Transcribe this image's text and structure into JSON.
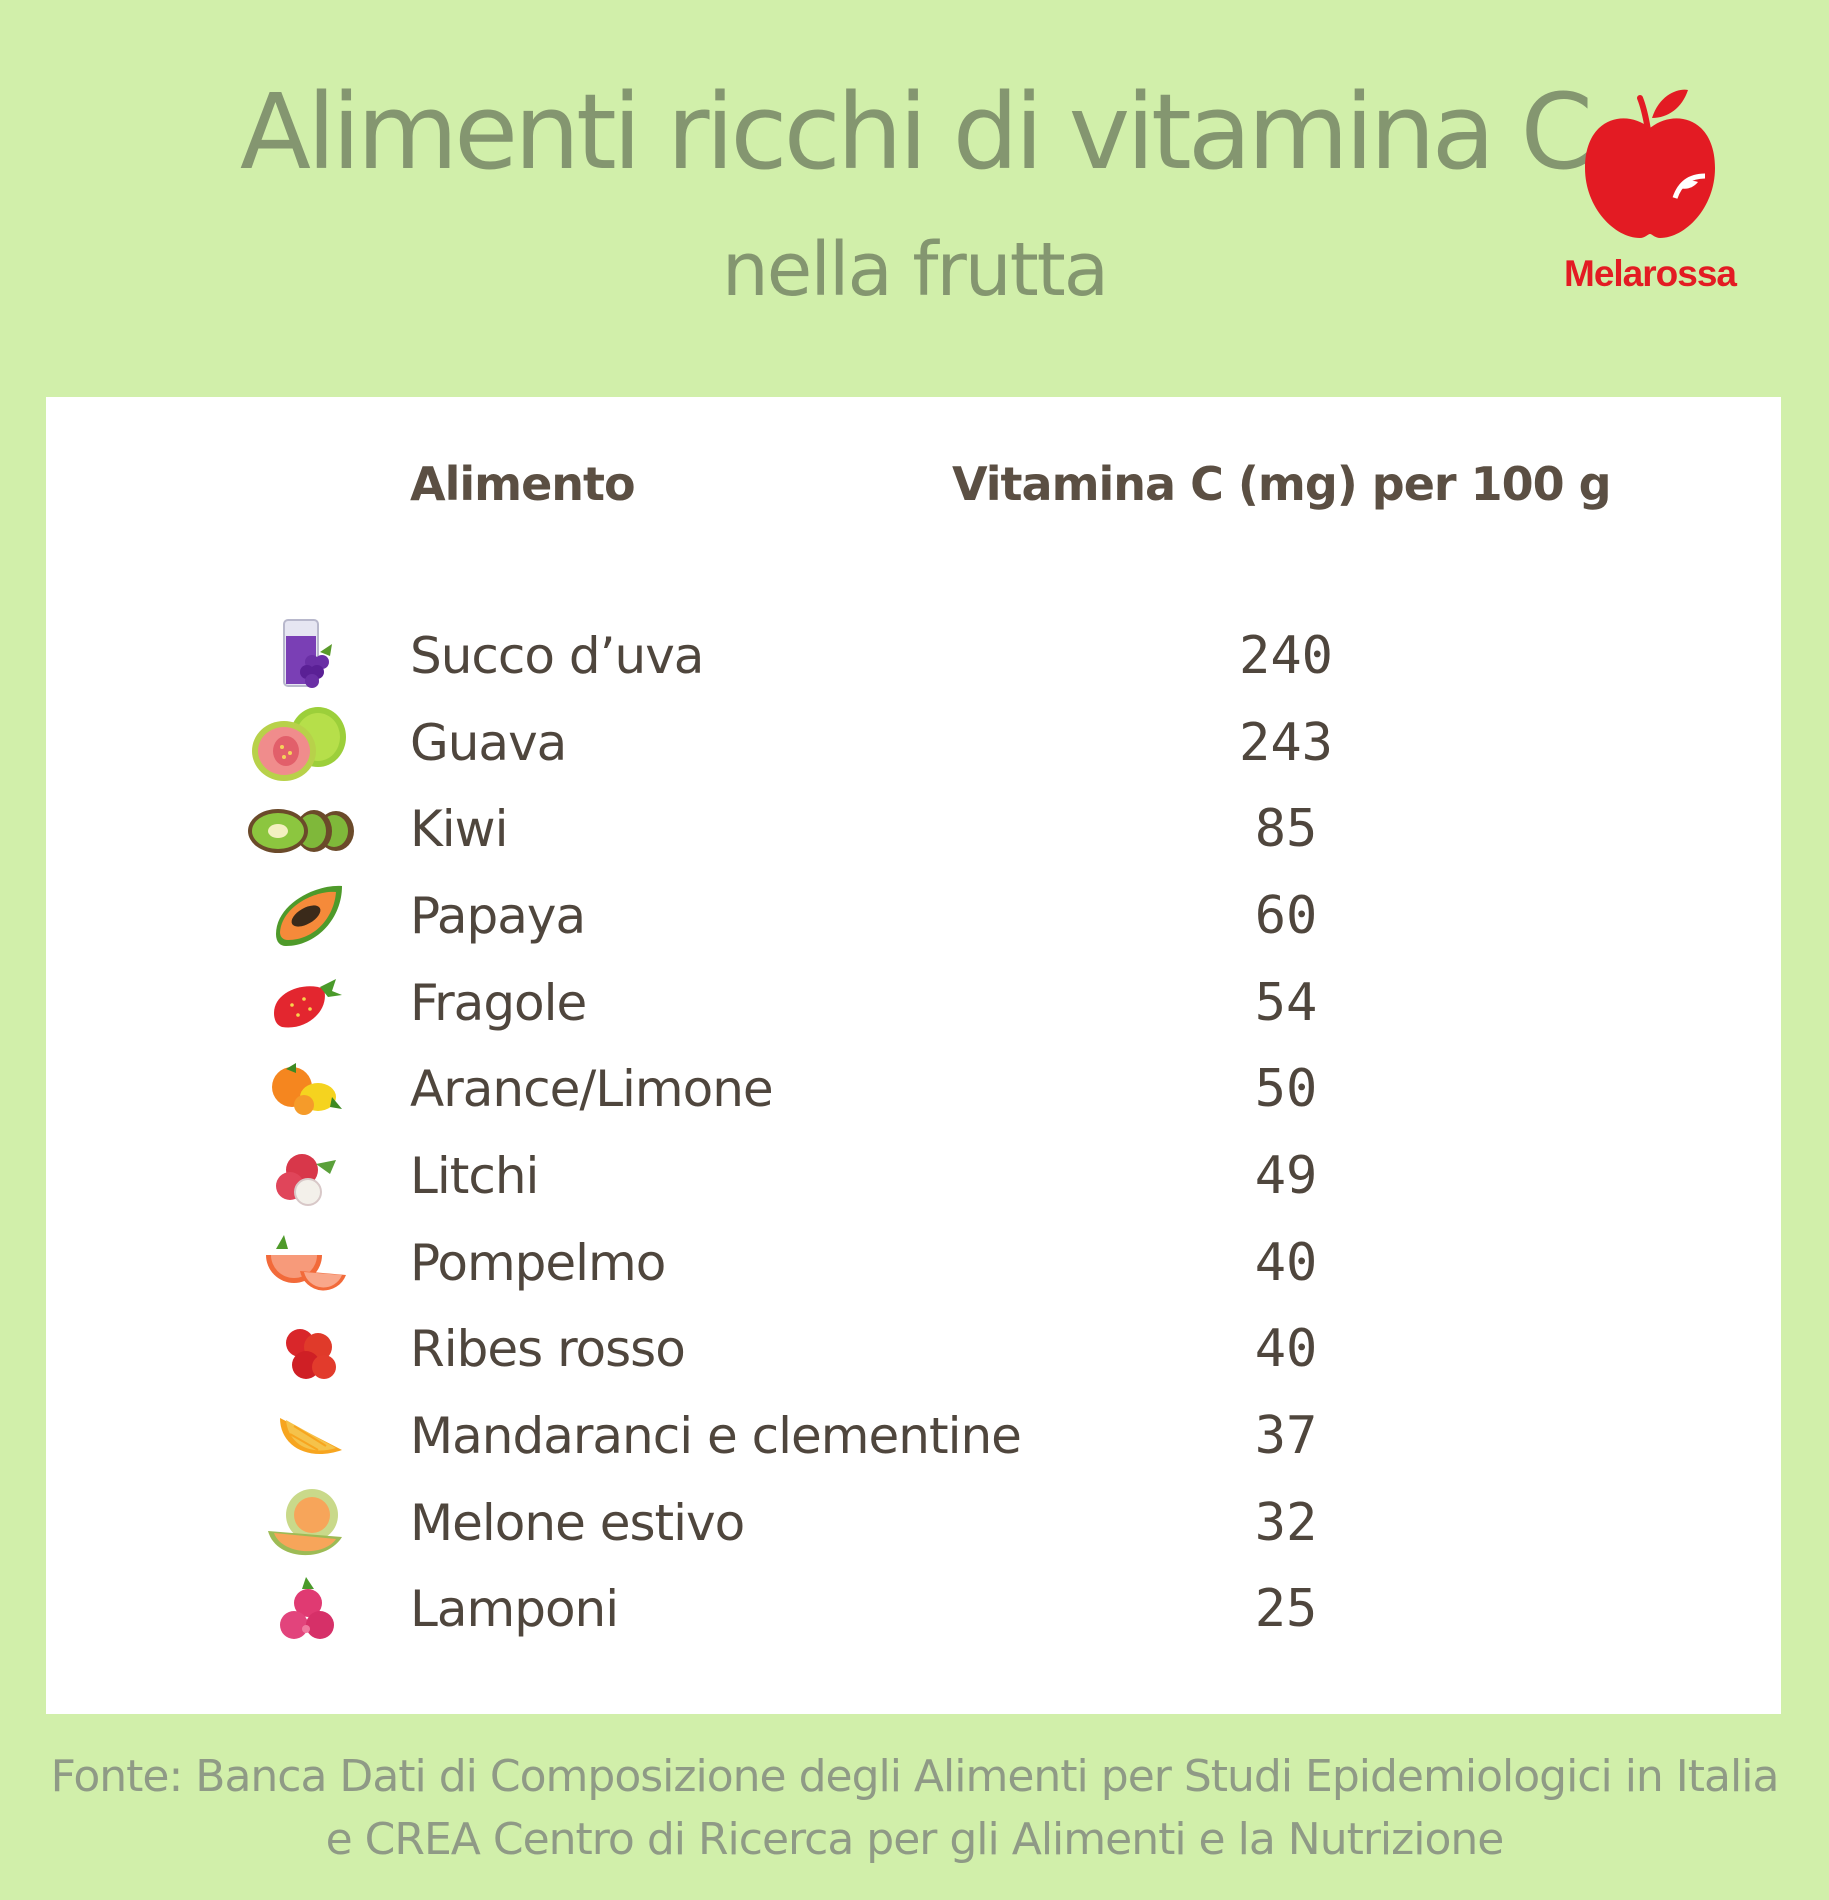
{
  "header": {
    "title": "Alimenti ricchi di vitamina C",
    "subtitle": "nella frutta"
  },
  "logo": {
    "name": "apple-logo-icon",
    "text": "Melarossa",
    "color": "#e31b23"
  },
  "table": {
    "headers": {
      "food": "Alimento",
      "vitamin": "Vitamina C (mg) per 100 g"
    },
    "rows": [
      {
        "icon": "grape-juice-icon",
        "name": "Succo d’uva",
        "value": "240"
      },
      {
        "icon": "guava-icon",
        "name": "Guava",
        "value": "243"
      },
      {
        "icon": "kiwi-icon",
        "name": "Kiwi",
        "value": "85"
      },
      {
        "icon": "papaya-icon",
        "name": "Papaya",
        "value": "60"
      },
      {
        "icon": "strawberry-icon",
        "name": "Fragole",
        "value": "54"
      },
      {
        "icon": "orange-lemon-icon",
        "name": "Arance/Limone",
        "value": "50"
      },
      {
        "icon": "lychee-icon",
        "name": "Litchi",
        "value": "49"
      },
      {
        "icon": "grapefruit-icon",
        "name": "Pompelmo",
        "value": "40"
      },
      {
        "icon": "red-currant-icon",
        "name": "Ribes rosso",
        "value": "40"
      },
      {
        "icon": "mandarin-icon",
        "name": "Mandaranci e clementine",
        "value": "37"
      },
      {
        "icon": "melon-icon",
        "name": "Melone estivo",
        "value": "32"
      },
      {
        "icon": "raspberry-icon",
        "name": "Lamponi",
        "value": "25"
      }
    ]
  },
  "source": {
    "line1": "Fonte: Banca Dati di Composizione degli Alimenti per Studi Epidemiologici in Italia",
    "line2": "e CREA Centro di Ricerca per gli Alimenti e la Nutrizione"
  },
  "colors": {
    "background": "#d1efaa",
    "title": "#849670",
    "text": "#4f463d",
    "card": "#ffffff"
  }
}
